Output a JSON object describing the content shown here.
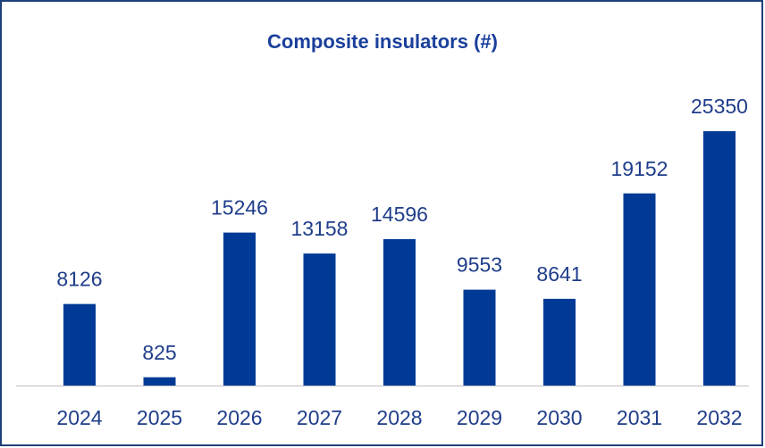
{
  "chart_data": {
    "type": "bar",
    "title": "Composite insulators (#)",
    "categories": [
      "2024",
      "2025",
      "2026",
      "2027",
      "2028",
      "2029",
      "2030",
      "2031",
      "2032"
    ],
    "values": [
      8126,
      825,
      15246,
      13158,
      14596,
      9553,
      8641,
      19152,
      25350
    ],
    "color": "#003a96"
  }
}
